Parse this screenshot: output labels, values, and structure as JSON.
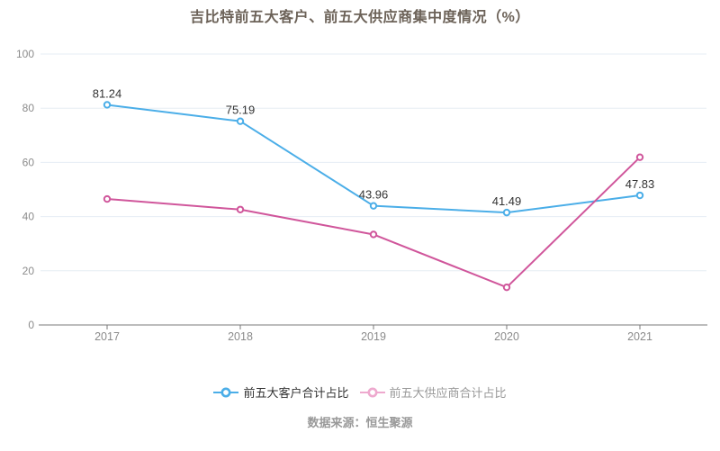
{
  "title": "吉比特前五大客户、前五大供应商集中度情况（%）",
  "source_note": "数据来源：恒生聚源",
  "chart_data": {
    "type": "line",
    "title": "吉比特前五大客户、前五大供应商集中度情况（%）",
    "categories": [
      "2017",
      "2018",
      "2019",
      "2020",
      "2021"
    ],
    "series": [
      {
        "name": "前五大客户合计占比",
        "values": [
          81.24,
          75.19,
          43.96,
          41.49,
          47.83
        ],
        "color": "#4baee8",
        "legend_marker_color": "#4baee8",
        "legend_text_color": "#333333",
        "show_labels": true
      },
      {
        "name": "前五大供应商合计占比",
        "values": [
          46.5,
          42.6,
          33.4,
          13.9,
          61.9
        ],
        "color": "#d0569b",
        "legend_marker_color": "#eea9ce",
        "legend_text_color": "#999999",
        "show_labels": false
      }
    ],
    "ylim": [
      0,
      100
    ],
    "yticks": [
      0,
      20,
      40,
      60,
      80,
      100
    ],
    "grid": true,
    "marker": "open-circle",
    "legend_position": "bottom"
  },
  "colors": {
    "title": "#6c6258",
    "axis_line": "#787878",
    "tick_label": "#8b8b8b",
    "grid_line": "#e6edf4",
    "data_label": "#333333",
    "source_note": "#999999",
    "background": "#ffffff"
  }
}
